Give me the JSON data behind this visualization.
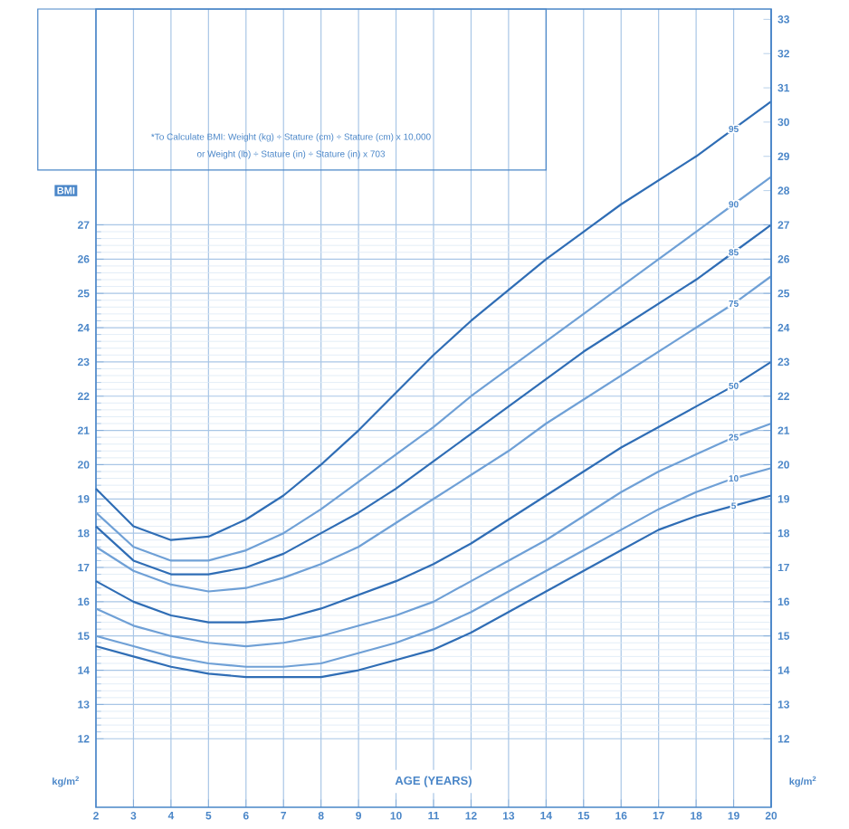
{
  "chart_data": {
    "type": "line",
    "xlabel": "AGE (YEARS)",
    "ylabel": "BMI",
    "annotations": [
      "*To Calculate BMI: Weight (kg) ÷ Stature (cm) ÷ Stature (cm) x 10,000",
      "or Weight (lb) ÷ Stature (in) ÷ Stature (in) x 703",
      "kg/m$^{2}$",
      "kg/m$^{2}$"
    ],
    "x": [
      2,
      3,
      4,
      5,
      6,
      7,
      8,
      9,
      10,
      11,
      12,
      13,
      14,
      15,
      16,
      17,
      18,
      19,
      20
    ],
    "series": [
      {
        "name": "95",
        "color": "#2f6db5",
        "values": [
          19.3,
          18.2,
          17.8,
          17.9,
          18.4,
          19.1,
          20.0,
          21.0,
          22.1,
          23.2,
          24.2,
          25.1,
          26.0,
          26.8,
          27.6,
          28.3,
          29.0,
          29.8,
          30.6
        ]
      },
      {
        "name": "90",
        "color": "#6fa0d6",
        "values": [
          18.6,
          17.6,
          17.2,
          17.2,
          17.5,
          18.0,
          18.7,
          19.5,
          20.3,
          21.1,
          22.0,
          22.8,
          23.6,
          24.4,
          25.2,
          26.0,
          26.8,
          27.6,
          28.4
        ]
      },
      {
        "name": "85",
        "color": "#2f6db5",
        "values": [
          18.2,
          17.2,
          16.8,
          16.8,
          17.0,
          17.4,
          18.0,
          18.6,
          19.3,
          20.1,
          20.9,
          21.7,
          22.5,
          23.3,
          24.0,
          24.7,
          25.4,
          26.2,
          27.0
        ]
      },
      {
        "name": "75",
        "color": "#6fa0d6",
        "values": [
          17.6,
          16.9,
          16.5,
          16.3,
          16.4,
          16.7,
          17.1,
          17.6,
          18.3,
          19.0,
          19.7,
          20.4,
          21.2,
          21.9,
          22.6,
          23.3,
          24.0,
          24.7,
          25.5
        ]
      },
      {
        "name": "50",
        "color": "#2f6db5",
        "values": [
          16.6,
          16.0,
          15.6,
          15.4,
          15.4,
          15.5,
          15.8,
          16.2,
          16.6,
          17.1,
          17.7,
          18.4,
          19.1,
          19.8,
          20.5,
          21.1,
          21.7,
          22.3,
          23.0
        ]
      },
      {
        "name": "25",
        "color": "#6fa0d6",
        "values": [
          15.8,
          15.3,
          15.0,
          14.8,
          14.7,
          14.8,
          15.0,
          15.3,
          15.6,
          16.0,
          16.6,
          17.2,
          17.8,
          18.5,
          19.2,
          19.8,
          20.3,
          20.8,
          21.2
        ]
      },
      {
        "name": "10",
        "color": "#6fa0d6",
        "values": [
          15.0,
          14.7,
          14.4,
          14.2,
          14.1,
          14.1,
          14.2,
          14.5,
          14.8,
          15.2,
          15.7,
          16.3,
          16.9,
          17.5,
          18.1,
          18.7,
          19.2,
          19.6,
          19.9
        ]
      },
      {
        "name": "5",
        "color": "#2f6db5",
        "values": [
          14.7,
          14.4,
          14.1,
          13.9,
          13.8,
          13.8,
          13.8,
          14.0,
          14.3,
          14.6,
          15.1,
          15.7,
          16.3,
          16.9,
          17.5,
          18.1,
          18.5,
          18.8,
          19.1
        ]
      }
    ],
    "xlim": [
      2,
      20
    ],
    "xticks": [
      2,
      3,
      4,
      5,
      6,
      7,
      8,
      9,
      10,
      11,
      12,
      13,
      14,
      15,
      16,
      17,
      18,
      19,
      20
    ],
    "ylim": [
      10,
      33.3
    ],
    "yticks": [
      12,
      13,
      14,
      15,
      16,
      17,
      18,
      19,
      20,
      21,
      22,
      23,
      24,
      25,
      26,
      27
    ],
    "y2lim": [
      10,
      33.3
    ],
    "y2ticks": [
      12,
      13,
      14,
      15,
      16,
      17,
      18,
      19,
      20,
      21,
      22,
      23,
      24,
      25,
      26,
      27,
      28,
      29,
      30,
      31,
      32,
      33
    ],
    "grid": true
  }
}
